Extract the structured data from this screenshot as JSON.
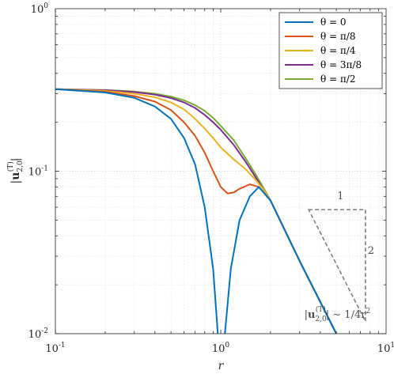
{
  "chart_data": {
    "type": "line",
    "xscale": "log",
    "yscale": "log",
    "xlim": [
      0.1,
      10
    ],
    "ylim": [
      0.01,
      1
    ],
    "grid": true,
    "minor_grid": true,
    "legend_placement": "top-right",
    "xlabel": "r",
    "ylabel": "|u₂,₀⁽ᵀ⁾|",
    "x_ticks": [
      {
        "value": 0.1,
        "base": "10",
        "exp": "-1"
      },
      {
        "value": 1,
        "base": "10",
        "exp": "0"
      },
      {
        "value": 10,
        "base": "10",
        "exp": "1"
      }
    ],
    "y_ticks": [
      {
        "value": 0.01,
        "base": "10",
        "exp": "-2"
      },
      {
        "value": 0.1,
        "base": "10",
        "exp": "-1"
      },
      {
        "value": 1,
        "base": "10",
        "exp": "0"
      }
    ],
    "series": [
      {
        "name": "θ = 0",
        "color": "#0072BD",
        "x": [
          0.1,
          0.2,
          0.3,
          0.4,
          0.5,
          0.6,
          0.7,
          0.8,
          0.9,
          0.96,
          1.0,
          1.06,
          1.15,
          1.3,
          1.5,
          1.7,
          2.0,
          3.0,
          5.0
        ],
        "y": [
          0.32,
          0.305,
          0.283,
          0.25,
          0.21,
          0.16,
          0.11,
          0.06,
          0.025,
          0.01,
          0.008,
          0.01,
          0.025,
          0.05,
          0.07,
          0.08,
          0.066,
          0.028,
          0.01
        ]
      },
      {
        "name": "θ = π/8",
        "color": "#D95319",
        "x": [
          0.1,
          0.2,
          0.3,
          0.4,
          0.5,
          0.6,
          0.7,
          0.8,
          0.9,
          1.0,
          1.1,
          1.2,
          1.3,
          1.5,
          1.7,
          2.0,
          3.0,
          5.0
        ],
        "y": [
          0.32,
          0.308,
          0.29,
          0.268,
          0.238,
          0.2,
          0.165,
          0.13,
          0.1,
          0.08,
          0.073,
          0.074,
          0.078,
          0.083,
          0.08,
          0.066,
          0.028,
          0.01
        ]
      },
      {
        "name": "θ = π/4",
        "color": "#EDB120",
        "x": [
          0.1,
          0.2,
          0.3,
          0.4,
          0.5,
          0.6,
          0.7,
          0.8,
          0.9,
          1.0,
          1.2,
          1.4,
          1.6,
          1.8,
          2.0,
          3.0,
          5.0
        ],
        "y": [
          0.32,
          0.312,
          0.3,
          0.285,
          0.265,
          0.24,
          0.21,
          0.183,
          0.16,
          0.14,
          0.118,
          0.104,
          0.09,
          0.078,
          0.066,
          0.028,
          0.01
        ]
      },
      {
        "name": "θ = 3π/8",
        "color": "#7E2F8E",
        "x": [
          0.1,
          0.2,
          0.3,
          0.4,
          0.5,
          0.6,
          0.7,
          0.8,
          0.9,
          1.0,
          1.2,
          1.4,
          1.6,
          1.8,
          2.0,
          3.0,
          5.0
        ],
        "y": [
          0.32,
          0.315,
          0.307,
          0.296,
          0.282,
          0.265,
          0.245,
          0.222,
          0.2,
          0.18,
          0.145,
          0.116,
          0.094,
          0.078,
          0.066,
          0.028,
          0.01
        ]
      },
      {
        "name": "θ = π/2",
        "color": "#77AC30",
        "x": [
          0.1,
          0.2,
          0.3,
          0.4,
          0.5,
          0.6,
          0.7,
          0.8,
          0.9,
          1.0,
          1.2,
          1.4,
          1.6,
          1.8,
          2.0,
          3.0,
          5.0
        ],
        "y": [
          0.32,
          0.316,
          0.309,
          0.3,
          0.288,
          0.273,
          0.255,
          0.235,
          0.213,
          0.19,
          0.155,
          0.122,
          0.098,
          0.08,
          0.066,
          0.028,
          0.01
        ]
      }
    ],
    "annotations": [
      {
        "text_parts": [
          "|u",
          "2,0",
          "(T)",
          "| ∼ 1/4r",
          "2"
        ],
        "x": 3.2,
        "y": 0.0125
      },
      {
        "text": "1",
        "x": 5.3,
        "y": 0.067
      },
      {
        "text": "2",
        "x": 8.1,
        "y": 0.031
      }
    ],
    "slope_triangle": {
      "x1": 3.4,
      "x2": 7.5,
      "y_top": 0.058,
      "y_bottom": 0.0119
    }
  }
}
